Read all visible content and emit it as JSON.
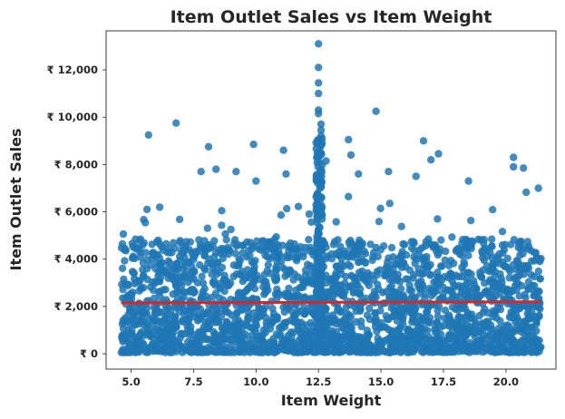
{
  "chart_data": {
    "type": "scatter",
    "title": "Item Outlet Sales vs Item Weight",
    "xlabel": "Item Weight",
    "ylabel": "Item Outlet Sales",
    "xlim": [
      4.0,
      22.0
    ],
    "ylim": [
      -650,
      13650
    ],
    "x_ticks": [
      5.0,
      7.5,
      10.0,
      12.5,
      15.0,
      17.5,
      20.0
    ],
    "x_tick_labels": [
      "5.0",
      "7.5",
      "10.0",
      "12.5",
      "15.0",
      "17.5",
      "20.0"
    ],
    "y_ticks": [
      0,
      2000,
      4000,
      6000,
      8000,
      10000,
      12000
    ],
    "y_tick_labels": [
      "₹ 0",
      "₹ 2,000",
      "₹ 4,000",
      "₹ 6,000",
      "₹ 8,000",
      "₹ 10,000",
      "₹ 12,000"
    ],
    "grid": false,
    "point_color": "#1f77b4",
    "trend_line_color": "#d62728",
    "trend_line": {
      "x": [
        4.6,
        21.4
      ],
      "y": [
        2150,
        2200
      ]
    },
    "highlighted_outliers": [
      [
        5.7,
        9250
      ],
      [
        6.8,
        9750
      ],
      [
        8.1,
        8750
      ],
      [
        9.9,
        8850
      ],
      [
        11.1,
        8600
      ],
      [
        12.5,
        13100
      ],
      [
        12.5,
        12100
      ],
      [
        12.5,
        11450
      ],
      [
        12.5,
        11000
      ],
      [
        12.5,
        10300
      ],
      [
        12.5,
        10150
      ],
      [
        12.6,
        9700
      ],
      [
        12.6,
        9450
      ],
      [
        12.6,
        9200
      ],
      [
        12.8,
        8150
      ],
      [
        13.7,
        9050
      ],
      [
        13.8,
        8400
      ],
      [
        14.1,
        7600
      ],
      [
        14.8,
        10250
      ],
      [
        15.3,
        7700
      ],
      [
        16.7,
        9000
      ],
      [
        16.4,
        7500
      ],
      [
        17.0,
        8200
      ],
      [
        17.3,
        8450
      ],
      [
        18.5,
        7300
      ],
      [
        20.3,
        8300
      ],
      [
        20.3,
        7900
      ],
      [
        20.7,
        7850
      ],
      [
        21.3,
        7000
      ],
      [
        7.8,
        7700
      ],
      [
        8.4,
        7800
      ],
      [
        9.2,
        7700
      ],
      [
        10.0,
        7300
      ],
      [
        11.2,
        7600
      ]
    ],
    "point_count_described": "dense cloud, most sales between ₹ 0 and ₹ 6,000 across weights 4.6–21.4"
  }
}
